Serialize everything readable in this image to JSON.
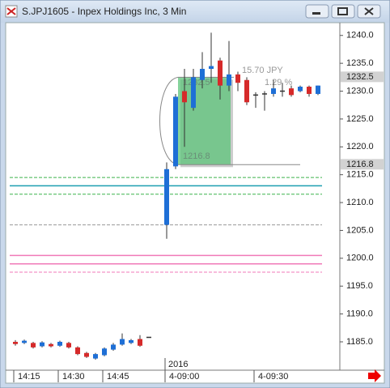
{
  "window": {
    "title": "S.JPJ1605 - Inpex Holdings Inc, 3 Min"
  },
  "chart_data": {
    "type": "candlestick",
    "categories": [
      "14:15",
      null,
      null,
      null,
      null,
      "14:30",
      null,
      null,
      null,
      null,
      "14:45",
      null,
      null,
      null,
      null,
      null,
      null,
      "4-09:00",
      null,
      null,
      null,
      null,
      null,
      null,
      null,
      null,
      null,
      "4-09:30",
      null,
      null,
      null,
      null,
      null,
      null,
      null
    ],
    "year_label": "2016",
    "open": [
      1185,
      1184.8,
      1184.8,
      1184.2,
      1184.6,
      1184.3,
      1184.8,
      1184.0,
      1183.0,
      1182.0,
      1182.6,
      1183.6,
      1184.5,
      1184.8,
      1185.5,
      1185.8,
      null,
      1206,
      1216.5,
      1230,
      1227,
      1232,
      1234,
      1235.5,
      1231,
      1233,
      1232,
      1229.3,
      1229.5,
      1229.5,
      1230,
      1230.5,
      1230,
      1230.8,
      1229.5
    ],
    "high": [
      1185.3,
      1185.4,
      1185.0,
      1185.1,
      1184.8,
      1185.2,
      1185.0,
      1184.2,
      1183.2,
      1183.0,
      1184.0,
      1184.8,
      1186.5,
      1185.5,
      1186.2,
      1185.8,
      null,
      1217.2,
      1229.5,
      1234,
      1234,
      1237,
      1240.5,
      1236,
      1239,
      1233.5,
      1232.5,
      1229.8,
      1230,
      1232,
      1231.5,
      1231,
      1231,
      1231,
      1231
    ],
    "low": [
      1184.3,
      1184.6,
      1183.8,
      1184.0,
      1184.0,
      1184.1,
      1183.8,
      1182.6,
      1182.1,
      1181.8,
      1182.4,
      1183.4,
      1184.3,
      1184.6,
      1184.1,
      1185.8,
      null,
      1203.5,
      1216,
      1220,
      1226.5,
      1230.5,
      1231.5,
      1228.5,
      1230,
      1230,
      1227.5,
      1227,
      1226.5,
      1229,
      1229,
      1229,
      1229.8,
      1229,
      1229.3
    ],
    "close": [
      1184.6,
      1185.2,
      1184.0,
      1184.9,
      1184.2,
      1185.0,
      1184.0,
      1182.8,
      1182.3,
      1182.8,
      1183.8,
      1184.5,
      1185.5,
      1185.3,
      1184.3,
      1185.8,
      null,
      1216,
      1229,
      1228,
      1232.5,
      1234,
      1234.5,
      1231,
      1233,
      1231.5,
      1228,
      1229.3,
      1229.5,
      1230.5,
      1230,
      1229.3,
      1230.8,
      1229.5,
      1231
    ],
    "up_color": "#1e6fd6",
    "down_color": "#d62a2a",
    "ylim": [
      1180.2,
      1242.0
    ],
    "yticks": [
      {
        "value": 1185,
        "label": "1185.0"
      },
      {
        "value": 1190,
        "label": "1190.0"
      },
      {
        "value": 1195,
        "label": "1195.0"
      },
      {
        "value": 1200,
        "label": "1200.0"
      },
      {
        "value": 1205,
        "label": "1205.0"
      },
      {
        "value": 1210,
        "label": "1210.0"
      },
      {
        "value": 1215,
        "label": "1215.0"
      },
      {
        "value": 1220,
        "label": "1220.0"
      },
      {
        "value": 1225,
        "label": "1225.0"
      },
      {
        "value": 1230,
        "label": "1230.0"
      },
      {
        "value": 1235,
        "label": "1235.0"
      },
      {
        "value": 1240,
        "label": "1240.0"
      }
    ],
    "levels": [
      {
        "value": 1214.5,
        "color": "#3cb44b",
        "style": "dashed"
      },
      {
        "value": 1213,
        "color": "#1e9fb0",
        "style": "solid"
      },
      {
        "value": 1211.5,
        "color": "#3cb44b",
        "style": "dashed"
      },
      {
        "value": 1206,
        "color": "#999999",
        "style": "dashed"
      },
      {
        "value": 1200.5,
        "color": "#f07ab8",
        "style": "solid"
      },
      {
        "value": 1199,
        "color": "#f07ab8",
        "style": "solid"
      },
      {
        "value": 1197.5,
        "color": "#f07ab8",
        "style": "dashed"
      }
    ],
    "price_tags": [
      1232.5,
      1216.8
    ],
    "measure": {
      "start": 1232.5,
      "end": 1216.8,
      "x_range": [
        18,
        24
      ],
      "change": "15.70 JPY",
      "percent": "1.29 %",
      "color": "#5cc47a"
    }
  }
}
